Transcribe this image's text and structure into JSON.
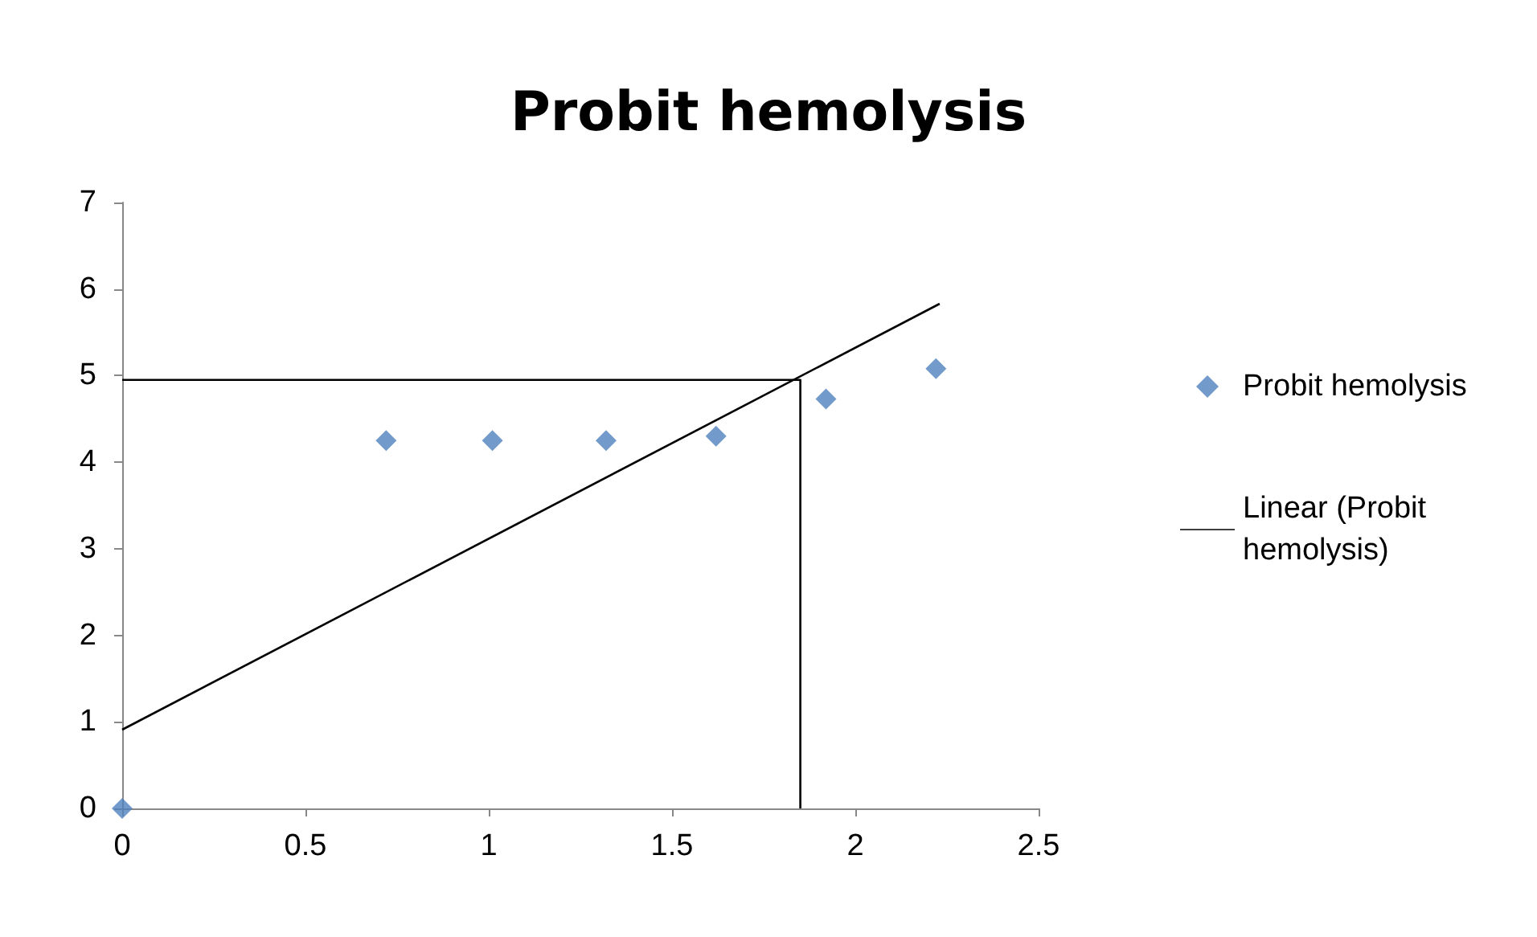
{
  "chart_data": {
    "type": "scatter",
    "title": "Probit hemolysis",
    "marker": "diamond",
    "legend": "right",
    "grid": false,
    "xlim": [
      0,
      2.5
    ],
    "xticks": [
      0,
      0.5,
      1,
      1.5,
      2,
      2.5
    ],
    "ylim": [
      0,
      7
    ],
    "yticks": [
      0,
      1,
      2,
      3,
      4,
      5,
      6,
      7
    ],
    "series": [
      {
        "name": "Probit hemolysis",
        "color": "#4f81bd",
        "x": [
          0,
          0.72,
          1.01,
          1.32,
          1.62,
          1.92,
          2.22
        ],
        "values": [
          0,
          4.25,
          4.25,
          4.25,
          4.3,
          4.73,
          5.08
        ]
      },
      {
        "name": "Linear (Probit hemolysis)",
        "type": "line",
        "color": "#000000",
        "marker": "none",
        "x": [
          0,
          2.23
        ],
        "values": [
          0.91,
          5.83
        ]
      },
      {
        "type": "line",
        "color": "#000000",
        "marker": "none",
        "x": [
          0,
          1.85,
          1.85
        ],
        "values": [
          4.95,
          4.95,
          0
        ]
      }
    ]
  }
}
